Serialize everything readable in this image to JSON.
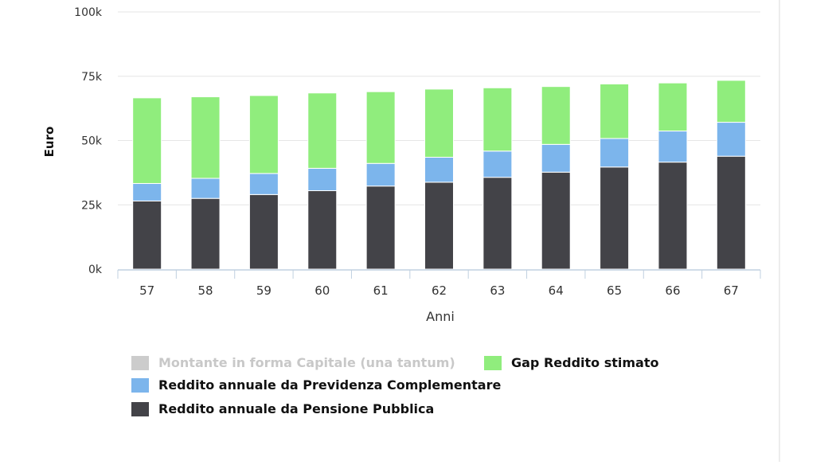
{
  "chart_data": {
    "type": "bar",
    "stacked": true,
    "xlabel": "Anni",
    "ylabel": "Euro",
    "ylim": [
      0,
      100000
    ],
    "y_ticks": [
      "0k",
      "25k",
      "50k",
      "75k",
      "100k"
    ],
    "categories": [
      "57",
      "58",
      "59",
      "60",
      "61",
      "62",
      "63",
      "64",
      "65",
      "66",
      "67"
    ],
    "grid": true,
    "legend_position": "bottom-left",
    "series": [
      {
        "name": "Reddito annuale da Pensione Pubblica",
        "color": "#434348",
        "values": [
          26500,
          27500,
          29000,
          30500,
          32300,
          33800,
          35700,
          37700,
          39700,
          41600,
          43900
        ]
      },
      {
        "name": "Reddito annuale da Previdenza Complementare",
        "color": "#7cb5ec",
        "values": [
          6800,
          7800,
          8200,
          8700,
          8800,
          9700,
          10200,
          10800,
          11100,
          12100,
          13200
        ]
      },
      {
        "name": "Gap Reddito stimato",
        "color": "#90ed7d",
        "values": [
          33300,
          31700,
          30300,
          29300,
          27900,
          26500,
          24600,
          22500,
          21200,
          18700,
          16300
        ]
      }
    ],
    "hidden_series": [
      {
        "name": "Montante in forma Capitale (una tantum)",
        "color": "#cccccc"
      }
    ]
  }
}
